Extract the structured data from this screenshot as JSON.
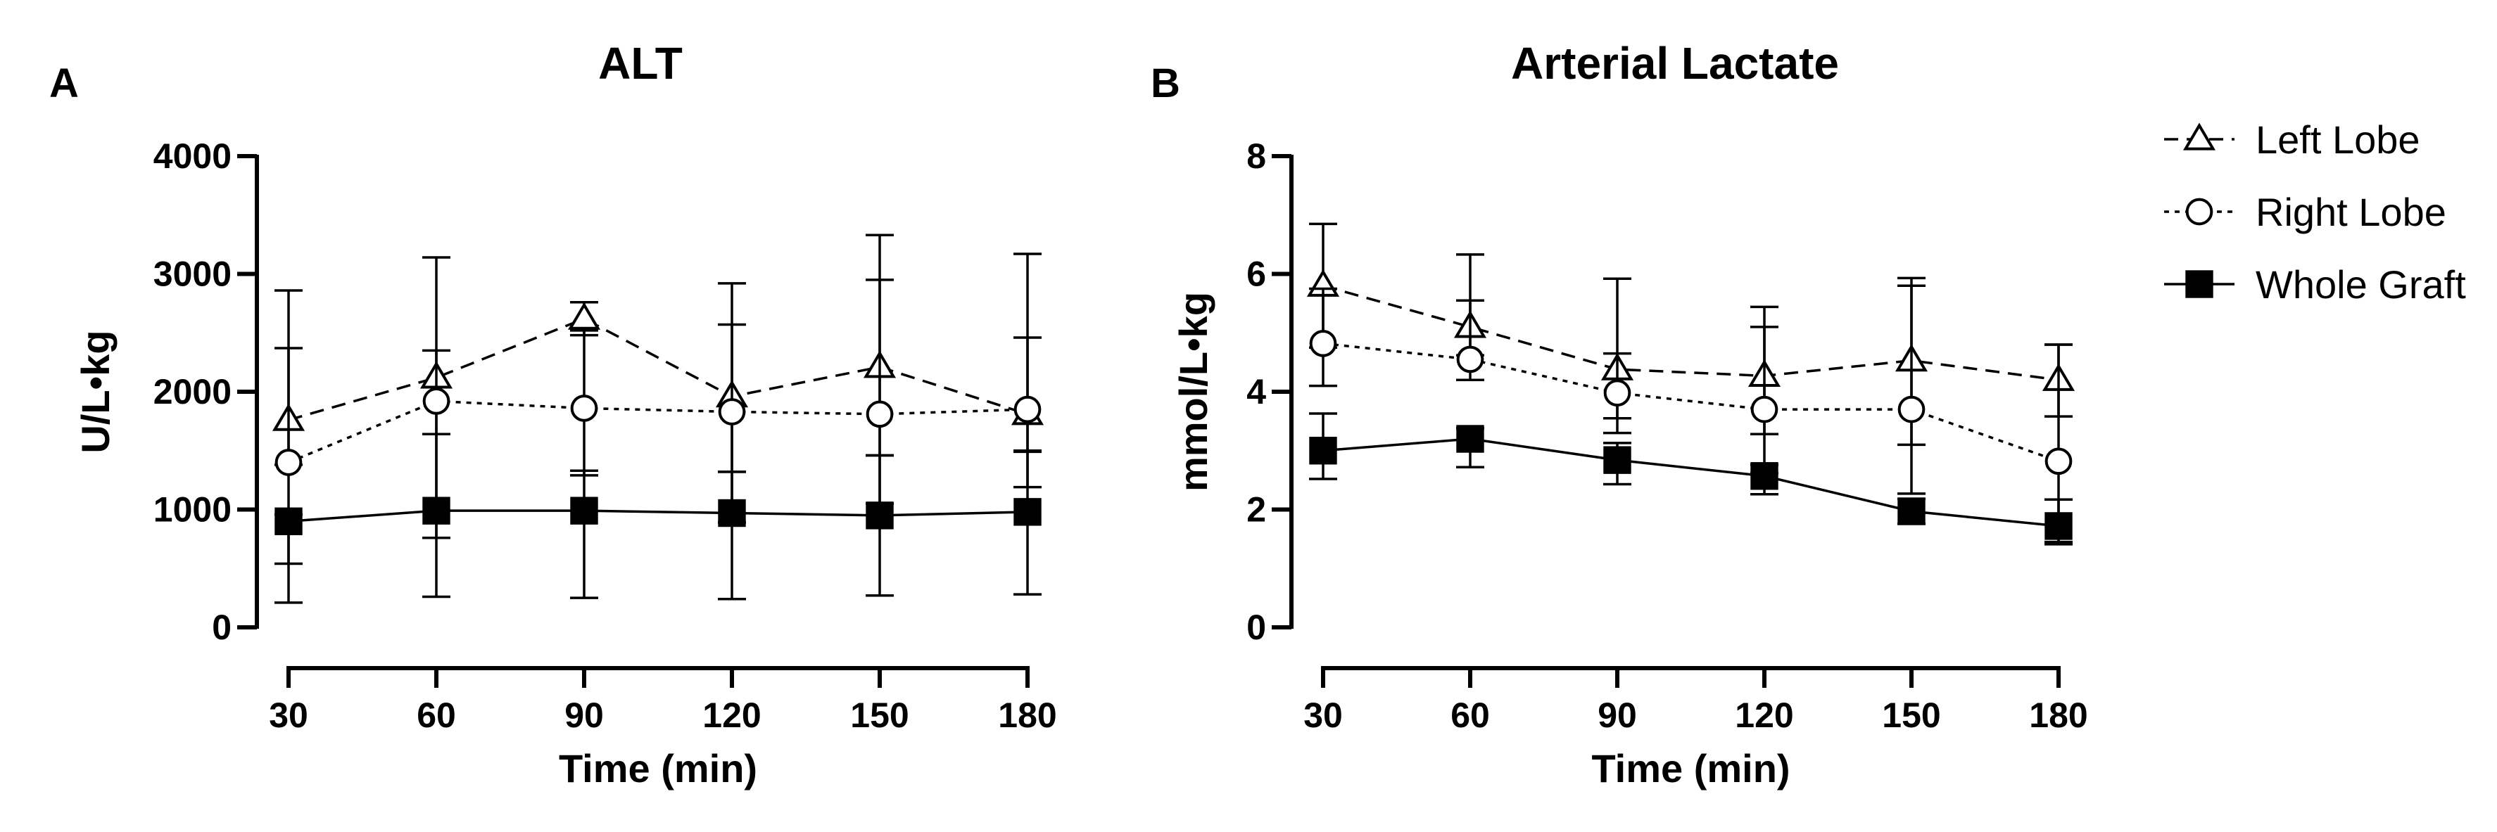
{
  "chart_data": [
    {
      "type": "line",
      "panel_label": "A",
      "title": "ALT",
      "xlabel": "Time (min)",
      "ylabel": "U/L•kg",
      "x": [
        30,
        60,
        90,
        120,
        150,
        180
      ],
      "x_tick_labels": [
        "30",
        "60",
        "90",
        "120",
        "150",
        "180"
      ],
      "ylim": [
        0,
        4000
      ],
      "y_ticks": [
        0,
        1000,
        2000,
        3000,
        4000
      ],
      "y_tick_labels": [
        "0",
        "1000",
        "2000",
        "3000",
        "4000"
      ],
      "series": [
        {
          "name": "Left Lobe",
          "marker": "triangle-open",
          "line": "dashed",
          "values": [
            1760,
            2120,
            2620,
            1960,
            2210,
            1810
          ],
          "err_low": [
            1380,
            1640,
            2480,
            1320,
            1460,
            1190
          ],
          "err_high": [
            2370,
            2350,
            2760,
            2570,
            2950,
            2460
          ]
        },
        {
          "name": "Right Lobe",
          "marker": "circle-open",
          "line": "dotted",
          "values": [
            1400,
            1920,
            1860,
            1830,
            1810,
            1850
          ],
          "err_low": [
            540,
            760,
            1290,
            890,
            1050,
            1500
          ],
          "err_high": [
            2860,
            3140,
            2520,
            2920,
            3330,
            3170
          ]
        },
        {
          "name": "Whole Graft",
          "marker": "square-filled",
          "line": "solid",
          "values": [
            900,
            990,
            990,
            970,
            950,
            980
          ],
          "err_low": [
            210,
            260,
            250,
            240,
            270,
            280
          ],
          "err_high": [
            960,
            1640,
            1330,
            1320,
            1460,
            1490
          ]
        }
      ]
    },
    {
      "type": "line",
      "panel_label": "B",
      "title": "Arterial Lactate",
      "xlabel": "Time (min)",
      "ylabel": "mmol/L•kg",
      "x": [
        30,
        60,
        90,
        120,
        150,
        180
      ],
      "x_tick_labels": [
        "30",
        "60",
        "90",
        "120",
        "150",
        "180"
      ],
      "ylim": [
        0,
        8
      ],
      "y_ticks": [
        0,
        2,
        4,
        6,
        8
      ],
      "y_tick_labels": [
        "0",
        "2",
        "4",
        "6",
        "8"
      ],
      "series": [
        {
          "name": "Left Lobe",
          "marker": "triangle-open",
          "line": "dashed",
          "values": [
            5.8,
            5.1,
            4.38,
            4.27,
            4.53,
            4.2
          ],
          "err_low": [
            4.75,
            4.62,
            3.55,
            3.28,
            3.1,
            3.58
          ],
          "err_high": [
            6.85,
            6.33,
            5.92,
            5.44,
            5.93,
            4.8
          ]
        },
        {
          "name": "Right Lobe",
          "marker": "circle-open",
          "line": "dotted",
          "values": [
            4.82,
            4.55,
            3.98,
            3.7,
            3.7,
            2.82
          ],
          "err_low": [
            4.1,
            4.2,
            3.3,
            2.62,
            2.27,
            1.45
          ],
          "err_high": [
            5.75,
            5.55,
            4.65,
            5.1,
            5.8,
            4.8
          ]
        },
        {
          "name": "Whole Graft",
          "marker": "square-filled",
          "line": "solid",
          "values": [
            3.0,
            3.2,
            2.84,
            2.57,
            1.97,
            1.72
          ],
          "err_low": [
            2.52,
            2.72,
            2.43,
            2.26,
            1.76,
            1.41
          ],
          "err_high": [
            3.63,
            3.38,
            3.13,
            2.76,
            2.18,
            2.17
          ]
        }
      ]
    }
  ],
  "legend": [
    {
      "label": "Left Lobe",
      "marker": "triangle-open",
      "line": "dashed"
    },
    {
      "label": "Right Lobe",
      "marker": "circle-open",
      "line": "dotted"
    },
    {
      "label": "Whole Graft",
      "marker": "square-filled",
      "line": "solid"
    }
  ]
}
